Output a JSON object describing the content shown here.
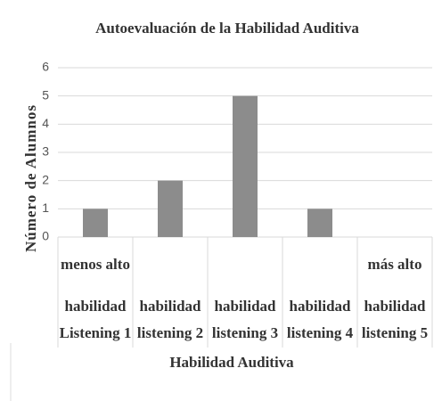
{
  "chart_data": {
    "type": "bar",
    "title": "Autoevaluación de la Habilidad Auditiva",
    "x_label": "Habilidad Auditiva",
    "y_label": "Número de Alumnos",
    "categories": [
      [
        "menos alto",
        "habilidad",
        "Listening 1"
      ],
      [
        "habilidad",
        "listening 2"
      ],
      [
        "habilidad",
        "listening 3"
      ],
      [
        "habilidad",
        "listening 4"
      ],
      [
        "más alto",
        "habilidad",
        "listening 5"
      ]
    ],
    "values": [
      1,
      2,
      5,
      1,
      0
    ],
    "color": "#8c8c8c",
    "ylim": [
      0,
      6
    ],
    "yticks": [
      0,
      1,
      2,
      3,
      4,
      5,
      6
    ],
    "grid": true
  }
}
